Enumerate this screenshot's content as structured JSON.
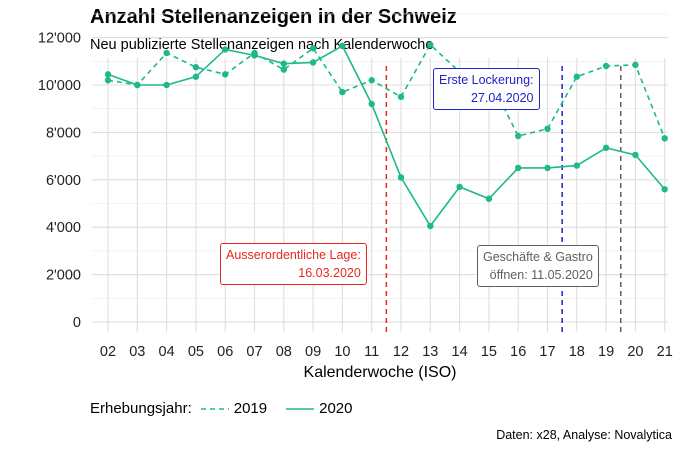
{
  "title": "Anzahl Stellenanzeigen in der Schweiz",
  "subtitle": "Neu publizierte Stellenanzeigen nach Kalenderwoche",
  "caption": "Daten: x28, Analyse: Novalytica",
  "legend": {
    "label": "Erhebungsjahr:",
    "items": [
      "2019",
      "2020"
    ]
  },
  "colors": {
    "series": "#1fb88a",
    "red": "#e8281f",
    "blue": "#1f24c8",
    "gray": "#5f5f5f",
    "grid": "#dedede"
  },
  "chart_data": {
    "type": "line",
    "xlabel": "Kalenderwoche (ISO)",
    "ylabel": "",
    "x": [
      "02",
      "03",
      "04",
      "05",
      "06",
      "07",
      "08",
      "09",
      "10",
      "11",
      "12",
      "13",
      "14",
      "15",
      "16",
      "17",
      "18",
      "19",
      "20",
      "21"
    ],
    "ylim": [
      0,
      13000
    ],
    "yticks": [
      0,
      2000,
      4000,
      6000,
      8000,
      10000,
      12000
    ],
    "ytick_labels": [
      "0",
      "2'000",
      "4'000",
      "6'000",
      "8'000",
      "10'000",
      "12'000"
    ],
    "grid": true,
    "legend_position": "bottom",
    "series": [
      {
        "name": "2019",
        "style": "dashed",
        "values": [
          10200,
          10000,
          11350,
          10750,
          10450,
          11350,
          10650,
          11550,
          9700,
          10200,
          9500,
          11700,
          10550,
          10300,
          7850,
          8150,
          10350,
          10800,
          10850,
          7750
        ]
      },
      {
        "name": "2020",
        "style": "solid",
        "values": [
          10450,
          10000,
          10000,
          10350,
          11500,
          11250,
          10900,
          10950,
          11650,
          9200,
          6100,
          4050,
          5700,
          5200,
          6500,
          6500,
          6600,
          7350,
          7050,
          5600
        ]
      }
    ],
    "annotations": [
      {
        "x": 11.5,
        "color": "red",
        "lines": [
          "Ausserordentliche Lage:",
          "16.03.2020"
        ]
      },
      {
        "x": 17.5,
        "color": "blue",
        "lines": [
          "Erste Lockerung:",
          "27.04.2020"
        ]
      },
      {
        "x": 19.5,
        "color": "gray",
        "lines": [
          "Geschäfte & Gastro",
          "öffnen: 11.05.2020"
        ]
      }
    ]
  }
}
